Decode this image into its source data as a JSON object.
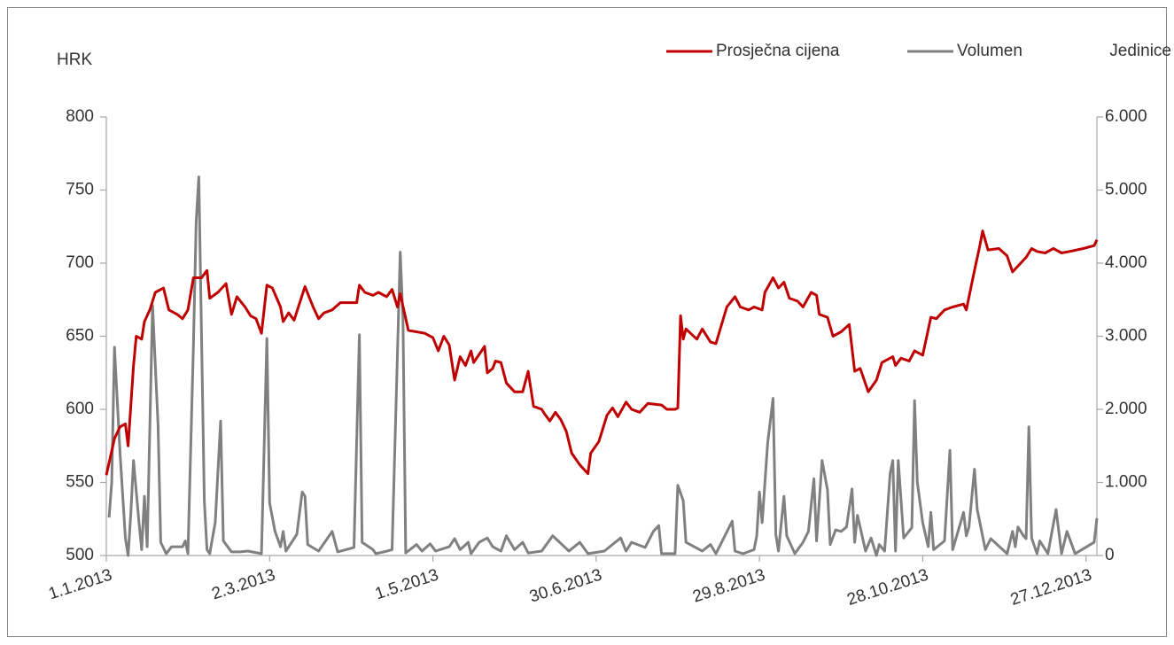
{
  "chart_data": {
    "type": "line",
    "y_label": "HRK",
    "y2_label": "Jedinice",
    "legend": "top-right",
    "xlim": [
      "2013-01-01",
      "2013-12-31"
    ],
    "xticks": [
      {
        "value": "2013-01-01",
        "label": "1.1.2013"
      },
      {
        "value": "2013-03-02",
        "label": "2.3.2013"
      },
      {
        "value": "2013-05-01",
        "label": "1.5.2013"
      },
      {
        "value": "2013-06-30",
        "label": "30.6.2013"
      },
      {
        "value": "2013-08-29",
        "label": "29.8.2013"
      },
      {
        "value": "2013-10-28",
        "label": "28.10.2013"
      },
      {
        "value": "2013-12-27",
        "label": "27.12.2013"
      }
    ],
    "ylim": [
      500,
      800
    ],
    "yticks": [
      500,
      550,
      600,
      650,
      700,
      750,
      800
    ],
    "y2lim": [
      0,
      6000
    ],
    "y2ticks": [
      0,
      {
        "value": 1000,
        "label": "1.000"
      },
      {
        "value": 2000,
        "label": "2.000"
      },
      {
        "value": 3000,
        "label": "3.000"
      },
      {
        "value": 4000,
        "label": "4.000"
      },
      {
        "value": 5000,
        "label": "5.000"
      },
      {
        "value": 6000,
        "label": "6.000"
      }
    ],
    "series": [
      {
        "name": "Prosječna cijena",
        "color": "#c00000",
        "x": [
          "2013-01-01",
          "2013-01-04",
          "2013-01-06",
          "2013-01-08",
          "2013-01-09",
          "2013-01-11",
          "2013-01-12",
          "2013-01-14",
          "2013-01-15",
          "2013-01-17",
          "2013-01-19",
          "2013-01-22",
          "2013-01-24",
          "2013-01-27",
          "2013-01-29",
          "2013-01-31",
          "2013-02-02",
          "2013-02-05",
          "2013-02-07",
          "2013-02-08",
          "2013-02-11",
          "2013-02-14",
          "2013-02-16",
          "2013-02-18",
          "2013-02-21",
          "2013-02-23",
          "2013-02-25",
          "2013-02-27",
          "2013-03-01",
          "2013-03-03",
          "2013-03-06",
          "2013-03-07",
          "2013-03-09",
          "2013-03-11",
          "2013-03-15",
          "2013-03-18",
          "2013-03-20",
          "2013-03-22",
          "2013-03-25",
          "2013-03-28",
          "2013-04-03",
          "2013-04-04",
          "2013-04-06",
          "2013-04-09",
          "2013-04-11",
          "2013-04-14",
          "2013-04-16",
          "2013-04-18",
          "2013-04-19",
          "2013-04-22",
          "2013-04-28",
          "2013-05-01",
          "2013-05-03",
          "2013-05-05",
          "2013-05-07",
          "2013-05-09",
          "2013-05-11",
          "2013-05-13",
          "2013-05-15",
          "2013-05-16",
          "2013-05-20",
          "2013-05-21",
          "2013-05-23",
          "2013-05-24",
          "2013-05-26",
          "2013-05-28",
          "2013-05-31",
          "2013-06-03",
          "2013-06-05",
          "2013-06-07",
          "2013-06-10",
          "2013-06-11",
          "2013-06-13",
          "2013-06-15",
          "2013-06-17",
          "2013-06-19",
          "2013-06-21",
          "2013-06-24",
          "2013-06-27",
          "2013-06-28",
          "2013-07-01",
          "2013-07-04",
          "2013-07-06",
          "2013-07-08",
          "2013-07-11",
          "2013-07-13",
          "2013-07-16",
          "2013-07-19",
          "2013-07-24",
          "2013-07-26",
          "2013-07-29",
          "2013-07-30",
          "2013-07-31",
          "2013-08-01",
          "2013-08-02",
          "2013-08-06",
          "2013-08-08",
          "2013-08-11",
          "2013-08-13",
          "2013-08-17",
          "2013-08-20",
          "2013-08-22",
          "2013-08-25",
          "2013-08-27",
          "2013-08-30",
          "2013-08-31",
          "2013-09-03",
          "2013-09-05",
          "2013-09-07",
          "2013-09-09",
          "2013-09-12",
          "2013-09-14",
          "2013-09-17",
          "2013-09-19",
          "2013-09-20",
          "2013-09-23",
          "2013-09-25",
          "2013-09-28",
          "2013-10-01",
          "2013-10-03",
          "2013-10-05",
          "2013-10-08",
          "2013-10-11",
          "2013-10-13",
          "2013-10-17",
          "2013-10-18",
          "2013-10-20",
          "2013-10-23",
          "2013-10-25",
          "2013-10-28",
          "2013-10-31",
          "2013-11-02",
          "2013-11-05",
          "2013-11-08",
          "2013-11-12",
          "2013-11-13",
          "2013-11-16",
          "2013-11-18",
          "2013-11-19",
          "2013-11-21",
          "2013-11-25",
          "2013-11-28",
          "2013-11-30",
          "2013-12-03",
          "2013-12-05",
          "2013-12-07",
          "2013-12-09",
          "2013-12-12",
          "2013-12-15",
          "2013-12-18",
          "2013-12-21",
          "2013-12-26",
          "2013-12-30",
          "2013-12-31"
        ],
        "values": [
          555,
          580,
          588,
          590,
          575,
          630,
          650,
          648,
          660,
          668,
          680,
          683,
          668,
          665,
          662,
          668,
          690,
          690,
          695,
          676,
          680,
          686,
          665,
          677,
          670,
          664,
          662,
          652,
          685,
          683,
          670,
          660,
          666,
          661,
          684,
          670,
          662,
          666,
          668,
          673,
          673,
          685,
          680,
          678,
          680,
          677,
          682,
          670,
          679,
          654,
          652,
          649,
          640,
          650,
          644,
          620,
          636,
          630,
          640,
          632,
          643,
          625,
          628,
          633,
          632,
          618,
          612,
          612,
          626,
          602,
          600,
          597,
          592,
          598,
          593,
          585,
          570,
          562,
          556,
          570,
          578,
          596,
          601,
          595,
          605,
          600,
          598,
          604,
          603,
          600,
          600,
          601,
          664,
          648,
          655,
          648,
          655,
          646,
          645,
          670,
          677,
          670,
          668,
          670,
          668,
          680,
          690,
          683,
          687,
          676,
          674,
          670,
          680,
          678,
          665,
          663,
          650,
          653,
          658,
          626,
          628,
          612,
          620,
          632,
          636,
          630,
          635,
          633,
          640,
          637,
          663,
          662,
          668,
          670,
          672,
          668,
          695,
          712,
          722,
          709,
          710,
          705,
          694,
          700,
          704,
          710,
          708,
          707,
          710,
          707,
          708,
          710,
          712,
          716
        ]
      },
      {
        "name": "Volumen",
        "color": "#808080",
        "axis": "y2",
        "x": [
          "2013-01-02",
          "2013-01-03",
          "2013-01-04",
          "2013-01-06",
          "2013-01-08",
          "2013-01-09",
          "2013-01-10",
          "2013-01-11",
          "2013-01-13",
          "2013-01-14",
          "2013-01-15",
          "2013-01-16",
          "2013-01-18",
          "2013-01-20",
          "2013-01-21",
          "2013-01-23",
          "2013-01-25",
          "2013-01-29",
          "2013-01-30",
          "2013-01-31",
          "2013-02-02",
          "2013-02-03",
          "2013-02-04",
          "2013-02-06",
          "2013-02-07",
          "2013-02-08",
          "2013-02-10",
          "2013-02-12",
          "2013-02-13",
          "2013-02-16",
          "2013-02-19",
          "2013-02-22",
          "2013-02-27",
          "2013-03-01",
          "2013-03-02",
          "2013-03-04",
          "2013-03-06",
          "2013-03-07",
          "2013-03-08",
          "2013-03-12",
          "2013-03-14",
          "2013-03-15",
          "2013-03-16",
          "2013-03-20",
          "2013-03-25",
          "2013-03-27",
          "2013-04-02",
          "2013-04-04",
          "2013-04-05",
          "2013-04-09",
          "2013-04-10",
          "2013-04-13",
          "2013-04-16",
          "2013-04-19",
          "2013-04-20",
          "2013-04-21",
          "2013-04-25",
          "2013-04-27",
          "2013-04-30",
          "2013-05-02",
          "2013-05-07",
          "2013-05-09",
          "2013-05-11",
          "2013-05-14",
          "2013-05-15",
          "2013-05-18",
          "2013-05-21",
          "2013-05-23",
          "2013-05-26",
          "2013-05-28",
          "2013-05-31",
          "2013-06-03",
          "2013-06-05",
          "2013-06-10",
          "2013-06-14",
          "2013-06-16",
          "2013-06-20",
          "2013-06-24",
          "2013-06-27",
          "2013-07-03",
          "2013-07-09",
          "2013-07-11",
          "2013-07-13",
          "2013-07-18",
          "2013-07-21",
          "2013-07-23",
          "2013-07-24",
          "2013-07-29",
          "2013-07-30",
          "2013-08-01",
          "2013-08-02",
          "2013-08-08",
          "2013-08-11",
          "2013-08-13",
          "2013-08-19",
          "2013-08-20",
          "2013-08-23",
          "2013-08-27",
          "2013-08-28",
          "2013-08-29",
          "2013-08-30",
          "2013-09-01",
          "2013-09-03",
          "2013-09-04",
          "2013-09-05",
          "2013-09-07",
          "2013-09-08",
          "2013-09-11",
          "2013-09-14",
          "2013-09-16",
          "2013-09-18",
          "2013-09-19",
          "2013-09-21",
          "2013-09-23",
          "2013-09-24",
          "2013-09-26",
          "2013-09-28",
          "2013-09-30",
          "2013-10-02",
          "2013-10-03",
          "2013-10-04",
          "2013-10-07",
          "2013-10-09",
          "2013-10-11",
          "2013-10-12",
          "2013-10-14",
          "2013-10-16",
          "2013-10-17",
          "2013-10-18",
          "2013-10-19",
          "2013-10-21",
          "2013-10-24",
          "2013-10-25",
          "2013-10-26",
          "2013-10-28",
          "2013-10-30",
          "2013-10-31",
          "2013-11-01",
          "2013-11-05",
          "2013-11-07",
          "2013-11-08",
          "2013-11-12",
          "2013-11-13",
          "2013-11-14",
          "2013-11-16",
          "2013-11-17",
          "2013-11-20",
          "2013-11-22",
          "2013-11-28",
          "2013-11-30",
          "2013-12-01",
          "2013-12-02",
          "2013-12-04",
          "2013-12-05",
          "2013-12-06",
          "2013-12-07",
          "2013-12-09",
          "2013-12-10",
          "2013-12-13",
          "2013-12-16",
          "2013-12-18",
          "2013-12-20",
          "2013-12-23",
          "2013-12-30",
          "2013-12-31"
        ],
        "values": [
          520,
          1000,
          2850,
          1420,
          240,
          0,
          570,
          1300,
          450,
          80,
          810,
          120,
          3420,
          1780,
          180,
          25,
          120,
          120,
          200,
          25,
          2870,
          4570,
          5180,
          750,
          80,
          25,
          450,
          1840,
          200,
          50,
          50,
          60,
          25,
          2970,
          720,
          330,
          120,
          330,
          60,
          290,
          870,
          810,
          150,
          60,
          330,
          50,
          110,
          3020,
          180,
          80,
          25,
          50,
          80,
          4150,
          3240,
          35,
          150,
          60,
          160,
          60,
          120,
          230,
          80,
          180,
          25,
          180,
          240,
          120,
          60,
          270,
          80,
          180,
          35,
          60,
          270,
          200,
          60,
          180,
          25,
          60,
          240,
          60,
          180,
          110,
          330,
          410,
          25,
          25,
          960,
          750,
          180,
          60,
          150,
          25,
          470,
          60,
          25,
          80,
          270,
          870,
          450,
          1540,
          2150,
          290,
          60,
          810,
          270,
          25,
          180,
          330,
          1050,
          200,
          1300,
          900,
          150,
          350,
          330,
          390,
          910,
          180,
          550,
          60,
          240,
          0,
          150,
          60,
          1120,
          1300,
          60,
          1300,
          240,
          380,
          2120,
          1000,
          450,
          120,
          590,
          80,
          200,
          1440,
          80,
          590,
          270,
          390,
          1180,
          630,
          80,
          230,
          25,
          330,
          120,
          390,
          270,
          230,
          1760,
          240,
          25,
          200,
          25,
          630,
          25,
          330,
          25,
          180,
          510
        ]
      }
    ]
  }
}
